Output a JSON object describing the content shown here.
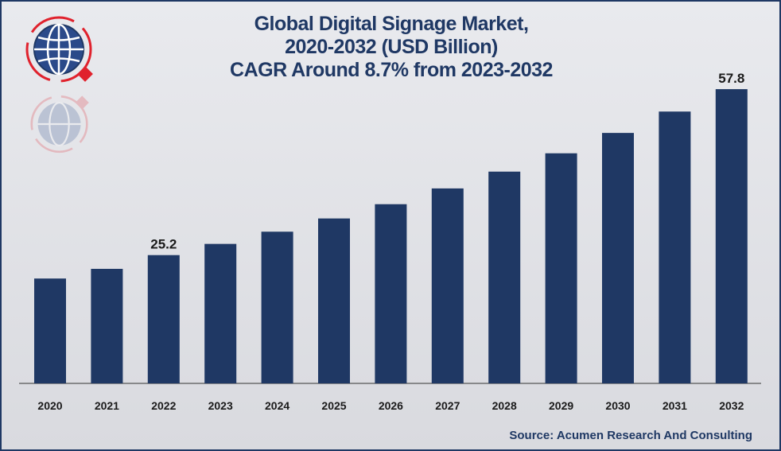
{
  "colors": {
    "bar": "#1f3864",
    "text": "#1f3864",
    "axis": "#333333",
    "logo_red": "#e0222d"
  },
  "logo": {
    "icon": "globe-icon"
  },
  "source": "Source: Acumen Research And Consulting",
  "chart_data": {
    "type": "bar",
    "title": [
      "Global Digital Signage Market,",
      "2020-2032 (USD Billion)",
      "CAGR Around 8.7% from 2023-2032"
    ],
    "categories": [
      "2020",
      "2021",
      "2022",
      "2023",
      "2024",
      "2025",
      "2026",
      "2027",
      "2028",
      "2029",
      "2030",
      "2031",
      "2032"
    ],
    "values": [
      20.6,
      22.5,
      25.2,
      27.4,
      29.8,
      32.4,
      35.2,
      38.3,
      41.6,
      45.2,
      49.2,
      53.4,
      57.8
    ],
    "data_labels": [
      null,
      null,
      "25.2",
      null,
      null,
      null,
      null,
      null,
      null,
      null,
      null,
      null,
      "57.8"
    ],
    "ylim": [
      0,
      65
    ],
    "grid": false,
    "legend": "none",
    "xlabel": "",
    "ylabel": ""
  }
}
